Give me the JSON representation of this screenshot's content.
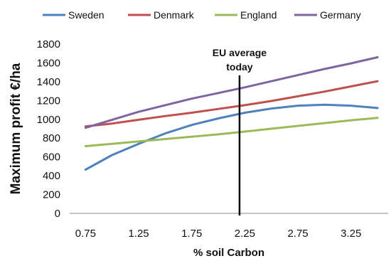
{
  "chart_data": {
    "type": "line",
    "xlabel": "% soil Carbon",
    "ylabel": "Maximum profit €/ha",
    "xlim": [
      0.6,
      3.6
    ],
    "ylim": [
      0,
      1800
    ],
    "x_ticks": [
      "0.75",
      "1.25",
      "1.75",
      "2.25",
      "2.75",
      "3.25"
    ],
    "y_ticks": [
      "0",
      "200",
      "400",
      "600",
      "800",
      "1000",
      "1200",
      "1400",
      "1600",
      "1800"
    ],
    "legend_position": "top",
    "annotation": {
      "x": 2.2,
      "line1": "EU average",
      "line2": "today"
    },
    "x": [
      0.75,
      1.0,
      1.25,
      1.5,
      1.75,
      2.0,
      2.25,
      2.5,
      2.75,
      3.0,
      3.25,
      3.5
    ],
    "series": [
      {
        "name": "Sweden",
        "color": "#4F81BD",
        "values": [
          465,
          620,
          740,
          850,
          940,
          1010,
          1070,
          1115,
          1145,
          1155,
          1145,
          1120
        ]
      },
      {
        "name": "Denmark",
        "color": "#C0504D",
        "values": [
          925,
          955,
          995,
          1035,
          1070,
          1110,
          1150,
          1195,
          1245,
          1295,
          1350,
          1405
        ]
      },
      {
        "name": "England",
        "color": "#9BBB59",
        "values": [
          715,
          740,
          765,
          790,
          815,
          840,
          870,
          900,
          930,
          960,
          990,
          1015
        ]
      },
      {
        "name": "Germany",
        "color": "#8064A2",
        "values": [
          910,
          995,
          1080,
          1150,
          1220,
          1280,
          1340,
          1405,
          1470,
          1535,
          1595,
          1660
        ]
      }
    ]
  }
}
